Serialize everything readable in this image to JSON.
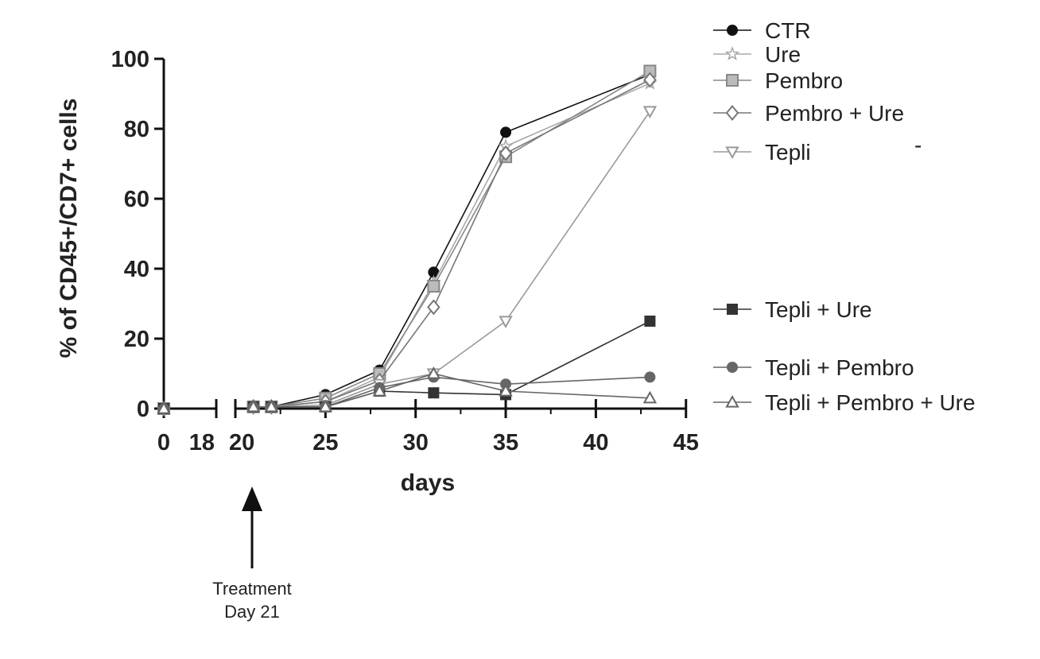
{
  "chart_data": {
    "type": "line",
    "xlabel": "days",
    "ylabel": "% of  CD45+/CD7+ cells",
    "xlim": [
      0,
      45
    ],
    "ylim": [
      0,
      100
    ],
    "x_axis_break": [
      18,
      20
    ],
    "x_tick_labels": [
      "0",
      "18",
      "20",
      "25",
      "30",
      "35",
      "40",
      "45"
    ],
    "y_tick_labels": [
      "0",
      "20",
      "40",
      "60",
      "80",
      "100"
    ],
    "legend_position": "right",
    "grid": false,
    "annotation": {
      "line1": "Treatment",
      "line2": "Day 21"
    },
    "stray_mark": "-",
    "series": [
      {
        "name": "CTR",
        "marker": "circle-filled",
        "color": "#111111",
        "points": [
          [
            0,
            0
          ],
          [
            21,
            0.5
          ],
          [
            22,
            0.5
          ],
          [
            25,
            4
          ],
          [
            28,
            11
          ],
          [
            31,
            39
          ],
          [
            35,
            79
          ],
          [
            43,
            95.5
          ]
        ]
      },
      {
        "name": "Ure",
        "marker": "star-open",
        "color": "#a8a8a8",
        "points": [
          [
            0,
            0
          ],
          [
            21,
            0.5
          ],
          [
            22,
            0.5
          ],
          [
            25,
            2
          ],
          [
            28,
            9
          ],
          [
            31,
            36
          ],
          [
            35,
            75
          ],
          [
            43,
            93
          ]
        ]
      },
      {
        "name": "Pembro",
        "marker": "square-hatched",
        "color": "#888888",
        "points": [
          [
            0,
            0
          ],
          [
            21,
            0.5
          ],
          [
            22,
            0.5
          ],
          [
            25,
            3
          ],
          [
            28,
            10
          ],
          [
            31,
            35
          ],
          [
            35,
            72
          ],
          [
            43,
            96.5
          ]
        ]
      },
      {
        "name": "Pembro + Ure",
        "marker": "diamond-open",
        "color": "#777777",
        "points": [
          [
            0,
            0
          ],
          [
            21,
            0.5
          ],
          [
            22,
            0.5
          ],
          [
            25,
            2
          ],
          [
            28,
            8
          ],
          [
            31,
            29
          ],
          [
            35,
            73
          ],
          [
            43,
            94
          ]
        ]
      },
      {
        "name": "Tepli",
        "marker": "triangle-down-open",
        "color": "#9a9a9a",
        "points": [
          [
            0,
            0
          ],
          [
            21,
            0.5
          ],
          [
            22,
            0.5
          ],
          [
            25,
            1
          ],
          [
            28,
            7
          ],
          [
            31,
            10
          ],
          [
            35,
            25
          ],
          [
            43,
            85
          ]
        ]
      },
      {
        "name": "Tepli + Ure",
        "marker": "square-filled",
        "color": "#333333",
        "points": [
          [
            0,
            0
          ],
          [
            21,
            0.5
          ],
          [
            22,
            0.5
          ],
          [
            25,
            0.5
          ],
          [
            28,
            5
          ],
          [
            31,
            4.5
          ],
          [
            35,
            4
          ],
          [
            43,
            25
          ]
        ]
      },
      {
        "name": "Tepli + Pembro",
        "marker": "circle-gray",
        "color": "#666666",
        "points": [
          [
            0,
            0
          ],
          [
            21,
            0.5
          ],
          [
            22,
            0.5
          ],
          [
            25,
            0.5
          ],
          [
            28,
            6
          ],
          [
            31,
            9
          ],
          [
            35,
            7
          ],
          [
            43,
            9
          ]
        ]
      },
      {
        "name": "Tepli + Pembro + Ure",
        "marker": "triangle-up-open",
        "color": "#666666",
        "points": [
          [
            0,
            0
          ],
          [
            21,
            0.5
          ],
          [
            22,
            0.5
          ],
          [
            25,
            0.5
          ],
          [
            28,
            5
          ],
          [
            31,
            10
          ],
          [
            35,
            5
          ],
          [
            43,
            3
          ]
        ]
      }
    ]
  }
}
